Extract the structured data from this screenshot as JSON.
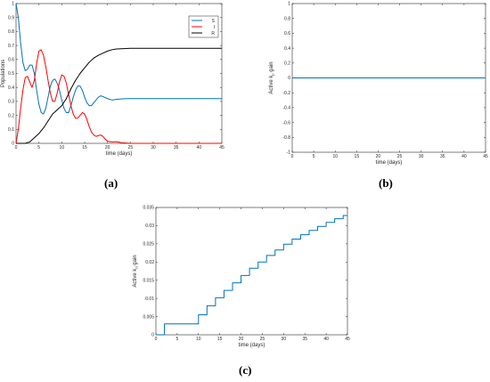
{
  "panel_labels": {
    "a": "(a)",
    "b": "(b)",
    "c": "(c)"
  },
  "colors": {
    "S": "#0072BD",
    "I": "#FF0000",
    "R": "#000000",
    "gain": "#0072BD",
    "axis": "#262626"
  },
  "chart_data": [
    {
      "id": "a",
      "type": "line",
      "xlabel": "time (days)",
      "ylabel": "Populations",
      "xlim": [
        0,
        45
      ],
      "ylim": [
        0,
        1
      ],
      "xticks": [
        0,
        5,
        10,
        15,
        20,
        25,
        30,
        35,
        40,
        45
      ],
      "yticks": [
        0,
        0.1,
        0.2,
        0.3,
        0.4,
        0.5,
        0.6,
        0.7,
        0.8,
        0.9,
        1
      ],
      "ytick_labels": [
        "0",
        "0.1",
        "0.2",
        "0.3",
        "0.4",
        "0.5",
        "0.6",
        "0.7",
        "0.8",
        "0.9",
        "1"
      ],
      "legend_position": "top-right",
      "series": [
        {
          "name": "S",
          "color": "#0072BD",
          "points": [
            [
              0,
              1
            ],
            [
              0.5,
              0.9
            ],
            [
              1,
              0.72
            ],
            [
              1.5,
              0.58
            ],
            [
              2,
              0.52
            ],
            [
              2.5,
              0.53
            ],
            [
              3,
              0.56
            ],
            [
              3.5,
              0.56
            ],
            [
              4,
              0.5
            ],
            [
              4.5,
              0.38
            ],
            [
              5,
              0.28
            ],
            [
              5.5,
              0.22
            ],
            [
              6,
              0.21
            ],
            [
              6.5,
              0.25
            ],
            [
              7,
              0.33
            ],
            [
              7.5,
              0.41
            ],
            [
              8,
              0.45
            ],
            [
              8.5,
              0.46
            ],
            [
              9,
              0.43
            ],
            [
              9.5,
              0.38
            ],
            [
              10,
              0.31
            ],
            [
              10.5,
              0.25
            ],
            [
              11,
              0.22
            ],
            [
              11.5,
              0.22
            ],
            [
              12,
              0.27
            ],
            [
              12.5,
              0.33
            ],
            [
              13,
              0.38
            ],
            [
              13.5,
              0.41
            ],
            [
              14,
              0.41
            ],
            [
              14.5,
              0.38
            ],
            [
              15,
              0.33
            ],
            [
              15.5,
              0.29
            ],
            [
              16,
              0.27
            ],
            [
              16.5,
              0.27
            ],
            [
              17,
              0.29
            ],
            [
              17.5,
              0.31
            ],
            [
              18,
              0.33
            ],
            [
              18.5,
              0.34
            ],
            [
              19,
              0.335
            ],
            [
              20,
              0.32
            ],
            [
              21,
              0.31
            ],
            [
              22,
              0.315
            ],
            [
              24,
              0.32
            ],
            [
              26,
              0.32
            ],
            [
              30,
              0.32
            ],
            [
              35,
              0.32
            ],
            [
              40,
              0.32
            ],
            [
              45,
              0.32
            ]
          ]
        },
        {
          "name": "I",
          "color": "#FF0000",
          "points": [
            [
              0,
              0
            ],
            [
              0.5,
              0.1
            ],
            [
              1,
              0.25
            ],
            [
              1.5,
              0.38
            ],
            [
              2,
              0.47
            ],
            [
              2.5,
              0.48
            ],
            [
              3,
              0.44
            ],
            [
              3.5,
              0.4
            ],
            [
              4,
              0.45
            ],
            [
              4.5,
              0.57
            ],
            [
              5,
              0.66
            ],
            [
              5.5,
              0.67
            ],
            [
              6,
              0.63
            ],
            [
              6.5,
              0.55
            ],
            [
              7,
              0.45
            ],
            [
              7.5,
              0.36
            ],
            [
              8,
              0.3
            ],
            [
              8.5,
              0.3
            ],
            [
              9,
              0.36
            ],
            [
              9.5,
              0.44
            ],
            [
              10,
              0.49
            ],
            [
              10.5,
              0.48
            ],
            [
              11,
              0.43
            ],
            [
              11.5,
              0.35
            ],
            [
              12,
              0.27
            ],
            [
              12.5,
              0.21
            ],
            [
              13,
              0.18
            ],
            [
              13.5,
              0.18
            ],
            [
              14,
              0.2
            ],
            [
              14.5,
              0.22
            ],
            [
              15,
              0.21
            ],
            [
              15.5,
              0.17
            ],
            [
              16,
              0.12
            ],
            [
              16.5,
              0.08
            ],
            [
              17,
              0.06
            ],
            [
              17.5,
              0.05
            ],
            [
              18,
              0.055
            ],
            [
              18.5,
              0.06
            ],
            [
              19,
              0.05
            ],
            [
              19.5,
              0.03
            ],
            [
              20,
              0.015
            ],
            [
              21,
              0.01
            ],
            [
              22,
              0.012
            ],
            [
              23,
              0.005
            ],
            [
              25,
              0
            ],
            [
              30,
              0
            ],
            [
              35,
              0
            ],
            [
              40,
              0
            ],
            [
              45,
              0
            ]
          ]
        },
        {
          "name": "R",
          "color": "#000000",
          "points": [
            [
              0,
              0
            ],
            [
              1,
              0
            ],
            [
              2,
              0
            ],
            [
              3,
              0.01
            ],
            [
              4,
              0.04
            ],
            [
              5,
              0.07
            ],
            [
              6,
              0.11
            ],
            [
              7,
              0.16
            ],
            [
              8,
              0.21
            ],
            [
              9,
              0.24
            ],
            [
              10,
              0.27
            ],
            [
              11,
              0.32
            ],
            [
              12,
              0.39
            ],
            [
              13,
              0.45
            ],
            [
              14,
              0.5
            ],
            [
              15,
              0.54
            ],
            [
              16,
              0.58
            ],
            [
              17,
              0.61
            ],
            [
              18,
              0.63
            ],
            [
              19,
              0.645
            ],
            [
              20,
              0.66
            ],
            [
              21,
              0.67
            ],
            [
              22,
              0.675
            ],
            [
              23,
              0.677
            ],
            [
              24,
              0.678
            ],
            [
              25,
              0.68
            ],
            [
              30,
              0.68
            ],
            [
              35,
              0.68
            ],
            [
              40,
              0.68
            ],
            [
              45,
              0.68
            ]
          ]
        }
      ]
    },
    {
      "id": "b",
      "type": "line",
      "xlabel": "time (days)",
      "ylabel": "Active k",
      "ylabel_sub": "p",
      "ylabel_tail": " gain",
      "xlim": [
        0,
        45
      ],
      "ylim": [
        -1,
        1
      ],
      "xticks": [
        0,
        5,
        10,
        15,
        20,
        25,
        30,
        35,
        40,
        45
      ],
      "yticks": [
        -1,
        -0.8,
        -0.6,
        -0.4,
        -0.2,
        0,
        0.2,
        0.4,
        0.6,
        0.8,
        1
      ],
      "ytick_labels": [
        "-1",
        "-0.8",
        "-0.6",
        "-0.4",
        "-0.2",
        "0",
        "0.2",
        "0.4",
        "0.6",
        "0.8",
        "1"
      ],
      "series": [
        {
          "color": "#0072BD",
          "points": [
            [
              0,
              0
            ],
            [
              45,
              0
            ]
          ]
        }
      ]
    },
    {
      "id": "c",
      "type": "line",
      "xlabel": "time (days)",
      "ylabel": "Active k",
      "ylabel_sub": "d",
      "ylabel_tail": " gain",
      "xlim": [
        0,
        45
      ],
      "ylim": [
        0,
        0.035
      ],
      "xticks": [
        0,
        5,
        10,
        15,
        20,
        25,
        30,
        35,
        40,
        45
      ],
      "yticks": [
        0,
        0.005,
        0.01,
        0.015,
        0.02,
        0.025,
        0.03,
        0.035
      ],
      "ytick_labels": [
        "0",
        "0.005",
        "0.01",
        "0.015",
        "0.02",
        "0.025",
        "0.03",
        "0.035"
      ],
      "series": [
        {
          "color": "#0072BD",
          "steps": [
            [
              0,
              0
            ],
            [
              2,
              0.003
            ],
            [
              10,
              0.0055
            ],
            [
              12,
              0.008
            ],
            [
              14,
              0.0102
            ],
            [
              16,
              0.0122
            ],
            [
              18,
              0.0143
            ],
            [
              20,
              0.0163
            ],
            [
              22,
              0.0183
            ],
            [
              24,
              0.02
            ],
            [
              26,
              0.0218
            ],
            [
              28,
              0.0233
            ],
            [
              30,
              0.0249
            ],
            [
              32,
              0.0263
            ],
            [
              34,
              0.0275
            ],
            [
              36,
              0.0287
            ],
            [
              38,
              0.0298
            ],
            [
              40,
              0.0309
            ],
            [
              42,
              0.0319
            ],
            [
              44,
              0.0328
            ],
            [
              45,
              0.0328
            ]
          ]
        }
      ]
    }
  ]
}
